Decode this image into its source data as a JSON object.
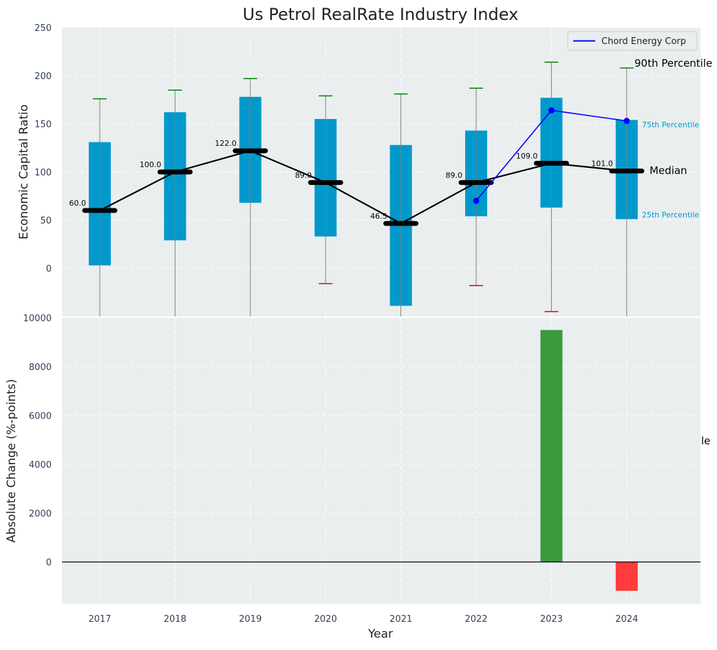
{
  "chart_data": [
    {
      "type": "box",
      "title": "Us Petrol RealRate Industry Index",
      "xlabel": "",
      "ylabel": "Economic Capital Ratio",
      "ylim": [
        -50,
        250
      ],
      "yticks": [
        "250",
        "200",
        "150",
        "100",
        "50",
        "0"
      ],
      "grid": true,
      "categories": [
        "2017",
        "2018",
        "2019",
        "2020",
        "2021",
        "2022",
        "2023",
        "2024"
      ],
      "p25": [
        3,
        29,
        68,
        33,
        -39,
        54,
        63,
        51
      ],
      "p75": [
        131,
        162,
        178,
        155,
        128,
        143,
        177,
        154
      ],
      "median": [
        60,
        100,
        122,
        89,
        46.5,
        89,
        109,
        101
      ],
      "median_labels": [
        "60.0",
        "100.0",
        "122.0",
        "89.0",
        "46.5",
        "89.0",
        "109.0",
        "101.0"
      ],
      "p90": [
        176,
        185,
        197,
        179,
        181,
        187,
        214,
        208
      ],
      "p10": [
        null,
        null,
        null,
        -16,
        null,
        -18,
        -45,
        null
      ],
      "company_series": {
        "name": "Chord Energy Corp",
        "x": [
          "2022",
          "2023",
          "2024"
        ],
        "values": [
          70,
          164,
          153
        ]
      },
      "legend": {
        "entries": [
          "Chord Energy Corp"
        ],
        "position": "top-right"
      },
      "side_labels": {
        "p90": "90th Percentile",
        "p75": "75th Percentile",
        "median": "Median",
        "p25": "25th Percentile"
      },
      "colors": {
        "box": "#0099cc",
        "median_line": "#000000",
        "company_line": "#0000ff",
        "p90_cap": "#008000",
        "p10_cap": "#e00000",
        "whisker": "#808080",
        "background": "#eaeeef"
      }
    },
    {
      "type": "bar",
      "xlabel": "Year",
      "ylabel": "Absolute Change (%-points)",
      "ylim": [
        -1700,
        10000
      ],
      "yticks": [
        "10000",
        "8000",
        "6000",
        "4000",
        "2000",
        "0"
      ],
      "categories": [
        "2017",
        "2018",
        "2019",
        "2020",
        "2021",
        "2022",
        "2023",
        "2024"
      ],
      "values": [
        null,
        null,
        null,
        null,
        null,
        null,
        9500,
        -1180
      ],
      "overflow_label_fragment": "le",
      "colors": {
        "positive": "#3a9a3e",
        "negative": "#ff3b3b",
        "zero_line": "#000000"
      }
    }
  ]
}
